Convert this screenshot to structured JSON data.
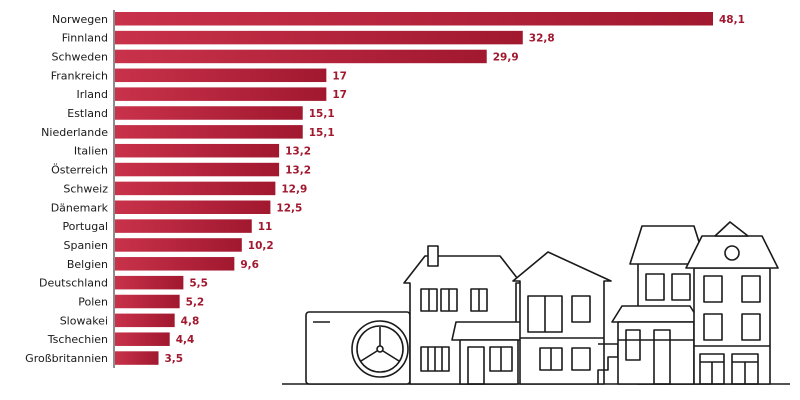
{
  "chart_data": {
    "type": "bar",
    "orientation": "horizontal",
    "categories": [
      "Norwegen",
      "Finnland",
      "Schweden",
      "Frankreich",
      "Irland",
      "Estland",
      "Niederlande",
      "Italien",
      "Österreich",
      "Schweiz",
      "Dänemark",
      "Portugal",
      "Spanien",
      "Belgien",
      "Deutschland",
      "Polen",
      "Slowakei",
      "Tschechien",
      "Großbritannien"
    ],
    "values": [
      48.1,
      32.8,
      29.9,
      17,
      17,
      15.1,
      15.1,
      13.2,
      13.2,
      12.9,
      12.5,
      11,
      10.2,
      9.6,
      5.5,
      5.2,
      4.8,
      4.4,
      3.5
    ],
    "value_labels": [
      "48,1",
      "32,8",
      "29,9",
      "17",
      "17",
      "15,1",
      "15,1",
      "13,2",
      "13,2",
      "12,9",
      "12,5",
      "11",
      "10,2",
      "9,6",
      "5,5",
      "5,2",
      "4,8",
      "4,4",
      "3,5"
    ],
    "title": "",
    "xlabel": "",
    "ylabel": "",
    "xlim": [
      0,
      48.1
    ],
    "grid": false,
    "bar_color": "#a1182f",
    "bar_color_light": "#c8324a",
    "axis_color": "#1a1a1a",
    "illustration": "row-of-houses-with-heat-pump-icon"
  }
}
